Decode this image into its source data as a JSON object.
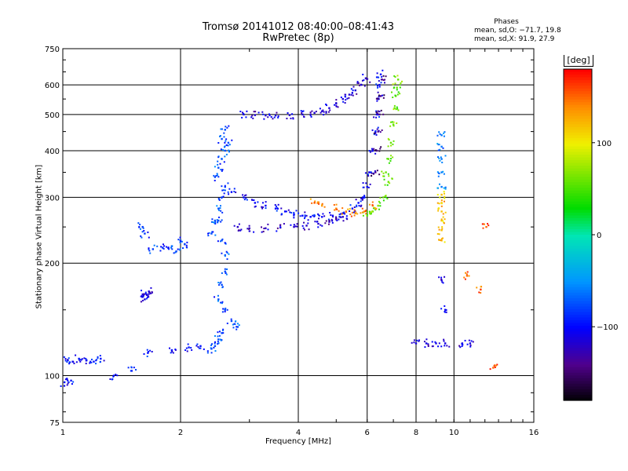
{
  "chart_data": {
    "type": "scatter",
    "title": "Tromsø 20141012 08:40:00–08:41:43",
    "subtitle": "RwPretec (8p)",
    "xlabel": "Frequency [MHz]",
    "ylabel": "Stationary phase Virtual Height [km]",
    "x_scale": "log",
    "y_scale": "log",
    "xlim": [
      1,
      16
    ],
    "ylim": [
      75,
      750
    ],
    "x_ticks": [
      1,
      2,
      4,
      6,
      8,
      10,
      16
    ],
    "y_ticks": [
      75,
      100,
      200,
      300,
      400,
      500,
      600,
      750
    ],
    "grid": true,
    "legend": {
      "title": "Phases",
      "line_o": "mean, sd,O: −71.7, 19.8",
      "line_x": "mean, sd,X:  91.9, 27.9"
    },
    "colorbar": {
      "label": "[deg]",
      "ticks": [
        "100",
        "0",
        "−100"
      ],
      "tick_values": [
        100,
        0,
        -100
      ],
      "range": [
        -180,
        180
      ]
    },
    "series": [
      {
        "phase": -95,
        "points": [
          [
            1.03,
            110
          ],
          [
            1.06,
            109
          ],
          [
            1.1,
            111
          ],
          [
            1.15,
            110
          ],
          [
            1.2,
            109
          ],
          [
            1.25,
            111
          ],
          [
            1.01,
            96
          ],
          [
            1.05,
            97
          ],
          [
            1.35,
            100
          ],
          [
            1.5,
            103
          ],
          [
            1.65,
            115
          ],
          [
            1.9,
            117
          ],
          [
            2.1,
            119
          ],
          [
            2.25,
            120
          ]
        ]
      },
      {
        "phase": -110,
        "points": [
          [
            1.62,
            160
          ],
          [
            1.64,
            165
          ],
          [
            1.66,
            168
          ],
          [
            1.6,
            165
          ]
        ]
      },
      {
        "phase": -80,
        "points": [
          [
            1.7,
            218
          ],
          [
            1.8,
            220
          ],
          [
            1.9,
            222
          ],
          [
            2.0,
            230
          ],
          [
            2.05,
            225
          ],
          [
            1.95,
            215
          ],
          [
            1.6,
            250
          ],
          [
            1.62,
            240
          ]
        ]
      },
      {
        "phase": -75,
        "points": [
          [
            2.4,
            240
          ],
          [
            2.45,
            260
          ],
          [
            2.5,
            280
          ],
          [
            2.55,
            300
          ],
          [
            2.6,
            320
          ],
          [
            2.45,
            340
          ],
          [
            2.5,
            360
          ],
          [
            2.55,
            380
          ],
          [
            2.5,
            260
          ],
          [
            2.55,
            230
          ],
          [
            2.6,
            210
          ],
          [
            2.6,
            190
          ],
          [
            2.55,
            175
          ],
          [
            2.5,
            160
          ],
          [
            2.6,
            150
          ],
          [
            2.7,
            140
          ],
          [
            2.8,
            135
          ],
          [
            2.55,
            130
          ],
          [
            2.5,
            125
          ],
          [
            2.45,
            120
          ],
          [
            2.4,
            118
          ],
          [
            2.6,
            400
          ],
          [
            2.55,
            430
          ],
          [
            2.6,
            455
          ],
          [
            2.65,
            420
          ]
        ]
      },
      {
        "phase": -100,
        "points": [
          [
            2.7,
            310
          ],
          [
            2.9,
            300
          ],
          [
            3.1,
            290
          ],
          [
            3.3,
            285
          ],
          [
            3.5,
            280
          ],
          [
            3.7,
            275
          ],
          [
            3.9,
            270
          ],
          [
            4.1,
            268
          ],
          [
            4.3,
            266
          ],
          [
            4.6,
            266
          ],
          [
            4.9,
            268
          ],
          [
            5.2,
            272
          ],
          [
            5.5,
            280
          ],
          [
            5.7,
            290
          ],
          [
            5.85,
            300
          ],
          [
            6.0,
            320
          ],
          [
            6.1,
            350
          ],
          [
            6.2,
            400
          ],
          [
            6.3,
            450
          ],
          [
            6.35,
            500
          ],
          [
            6.4,
            550
          ],
          [
            6.45,
            600
          ],
          [
            6.5,
            640
          ]
        ]
      },
      {
        "phase": -120,
        "points": [
          [
            2.8,
            250
          ],
          [
            3.0,
            248
          ],
          [
            3.3,
            248
          ],
          [
            3.6,
            249
          ],
          [
            3.9,
            250
          ],
          [
            4.2,
            252
          ],
          [
            4.5,
            255
          ],
          [
            4.8,
            258
          ],
          [
            5.0,
            262
          ],
          [
            5.2,
            266
          ]
        ]
      },
      {
        "phase": -115,
        "points": [
          [
            2.9,
            500
          ],
          [
            3.1,
            498
          ],
          [
            3.3,
            497
          ],
          [
            3.5,
            497
          ],
          [
            3.8,
            498
          ],
          [
            4.1,
            500
          ],
          [
            4.4,
            505
          ],
          [
            4.6,
            510
          ],
          [
            4.8,
            520
          ],
          [
            5.0,
            535
          ],
          [
            5.2,
            550
          ],
          [
            5.4,
            565
          ],
          [
            5.6,
            580
          ],
          [
            5.8,
            600
          ],
          [
            5.95,
            625
          ]
        ]
      },
      {
        "phase": 60,
        "points": [
          [
            6.7,
            350
          ],
          [
            6.8,
            380
          ],
          [
            6.9,
            420
          ],
          [
            7.0,
            470
          ],
          [
            7.05,
            520
          ],
          [
            7.1,
            560
          ],
          [
            7.15,
            590
          ],
          [
            7.2,
            620
          ],
          [
            6.8,
            330
          ],
          [
            6.6,
            300
          ],
          [
            6.4,
            285
          ],
          [
            6.2,
            275
          ],
          [
            6.0,
            268
          ]
        ]
      },
      {
        "phase": 140,
        "points": [
          [
            5.0,
            280
          ],
          [
            5.3,
            275
          ],
          [
            5.6,
            272
          ],
          [
            5.9,
            275
          ],
          [
            6.2,
            285
          ],
          [
            4.4,
            290
          ],
          [
            4.6,
            285
          ]
        ]
      },
      {
        "phase": -140,
        "points": [
          [
            6.3,
            350
          ],
          [
            6.35,
            400
          ],
          [
            6.4,
            450
          ],
          [
            6.45,
            500
          ],
          [
            6.5,
            560
          ],
          [
            6.55,
            620
          ]
        ]
      },
      {
        "phase": 120,
        "points": [
          [
            9.3,
            230
          ],
          [
            9.3,
            245
          ],
          [
            9.3,
            260
          ],
          [
            9.3,
            275
          ],
          [
            9.3,
            290
          ],
          [
            9.3,
            305
          ]
        ]
      },
      {
        "phase": -60,
        "points": [
          [
            9.3,
            320
          ],
          [
            9.3,
            350
          ],
          [
            9.3,
            380
          ],
          [
            9.3,
            410
          ],
          [
            9.3,
            440
          ]
        ]
      },
      {
        "phase": -110,
        "points": [
          [
            8.0,
            122
          ],
          [
            8.5,
            122
          ],
          [
            9.0,
            122
          ],
          [
            9.5,
            122
          ],
          [
            10.5,
            122
          ],
          [
            11.0,
            122
          ],
          [
            9.3,
            180
          ],
          [
            9.5,
            150
          ]
        ]
      },
      {
        "phase": 150,
        "points": [
          [
            10.8,
            185
          ],
          [
            12.1,
            250
          ],
          [
            12.6,
            105
          ],
          [
            11.7,
            170
          ]
        ]
      }
    ]
  }
}
